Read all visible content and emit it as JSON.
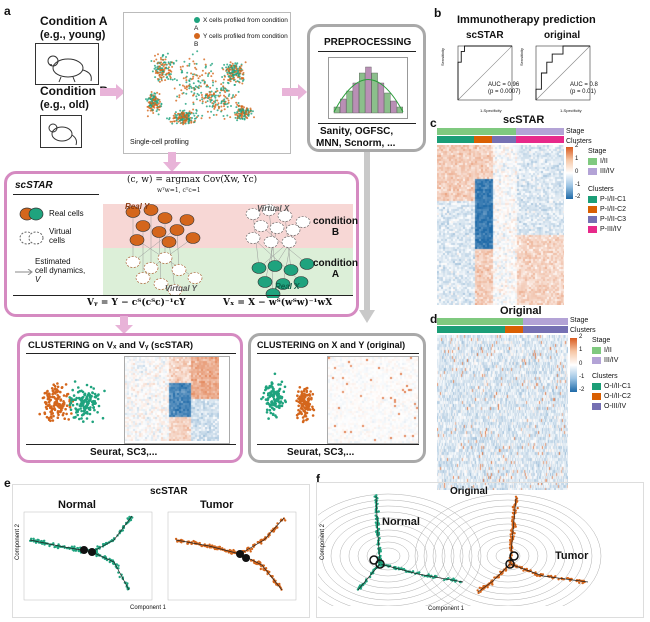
{
  "panels": {
    "a": "a",
    "b": "b",
    "c": "c",
    "d": "d",
    "e": "e",
    "f": "f"
  },
  "panel_a": {
    "condA_title": "Condition A",
    "condA_sub": "(e.g., young)",
    "condB_title": "Condition B",
    "condB_sub": "(e.g., old)",
    "legend_x": "X cells profiled from condition A",
    "legend_y": "Y cells profiled from condition B",
    "single_cell": "Single-cell profiling",
    "preprocessing_title": "PREPROCESSING",
    "preprocessing_methods_1": "Sanity, OGFSC,",
    "preprocessing_methods_2": "MNN, Scnorm, ...",
    "scstar_title": "scSTAR",
    "real_cells": "Real cells",
    "virtual_cells_1": "Virtual",
    "virtual_cells_2": "cells",
    "estimated_1": "Estimated",
    "estimated_2": "cell dynamics,",
    "estimated_3": "V",
    "argmax_formula": "(c, w) = argmax Cov(Xw, Yc)",
    "argmax_constraint": "wᵀw=1, cᵀc=1",
    "real_y": "Real Y",
    "virtual_x": "Virtual X",
    "virtual_y": "Virtual Y",
    "real_x": "Real X",
    "condition_b_1": "condition",
    "condition_b_2": "B",
    "condition_a_1": "condition",
    "condition_a_2": "A",
    "vy_formula": "Vᵧ = Y − cᵀ(cᵀc)⁻¹cY",
    "vx_formula": "Vₓ = X − wᵀ(wᵀw)⁻¹wX",
    "clustering_scstar_title": "CLUSTERING on Vₓ and Vᵧ (scSTAR)",
    "clustering_scstar_methods": "Seurat, SC3,...",
    "clustering_orig_title": "CLUSTERING on X and Y (original)",
    "clustering_orig_methods": "Seurat, SC3,..."
  },
  "panel_b": {
    "title": "Immunotherapy prediction",
    "left_title": "scSTAR",
    "right_title": "original",
    "left_auc": "AUC = 0.96",
    "left_p": "(p = 0.0007)",
    "right_auc": "AUC = 0.8",
    "right_p": "(p = 0.01)",
    "xlabel": "1-Specificity",
    "ylabel": "Sensitivity"
  },
  "panel_c": {
    "title": "scSTAR",
    "stage_label": "Stage",
    "clusters_label": "Clusters",
    "stage_heading": "Stage",
    "stage_items": [
      "I/II",
      "III/IV"
    ],
    "clusters_heading": "Clusters",
    "cluster_items": [
      "P-I/II-C1",
      "P-I/II-C2",
      "P-I/II-C3",
      "P-III/IV"
    ],
    "scale_top": "2",
    "scale_mid1": "1",
    "scale_mid0": "0",
    "scale_mid_1": "-1",
    "scale_bot": "-2"
  },
  "panel_d": {
    "title": "Original",
    "stage_label": "Stage",
    "clusters_label": "Clusters",
    "stage_heading": "Stage",
    "stage_items": [
      "I/II",
      "III/IV"
    ],
    "clusters_heading": "Clusters",
    "cluster_items": [
      "O-I/II-C1",
      "O-I/II-C2",
      "O-III/IV"
    ],
    "scale_top": "2",
    "scale_mid1": "1",
    "scale_mid0": "0",
    "scale_mid_1": "-1",
    "scale_bot": "-2"
  },
  "panel_e": {
    "title": "scSTAR",
    "left_label": "Normal",
    "right_label": "Tumor",
    "xlabel": "Component 1",
    "ylabel": "Component 2"
  },
  "panel_f": {
    "title": "Original",
    "left_label": "Normal",
    "right_label": "Tumor",
    "xlabel": "Component 1",
    "ylabel": "Component 2"
  },
  "colors": {
    "teal": "#1fa37e",
    "orange": "#d4661c",
    "pink": "#d58ac1",
    "gray": "#a9a9a9",
    "stage_green": "#7fc97f",
    "stage_purple": "#b3a3d6",
    "cluster_green": "#1b9e77",
    "cluster_orange": "#d95f02",
    "cluster_purple": "#7570b3",
    "cluster_magenta": "#e7298a"
  }
}
